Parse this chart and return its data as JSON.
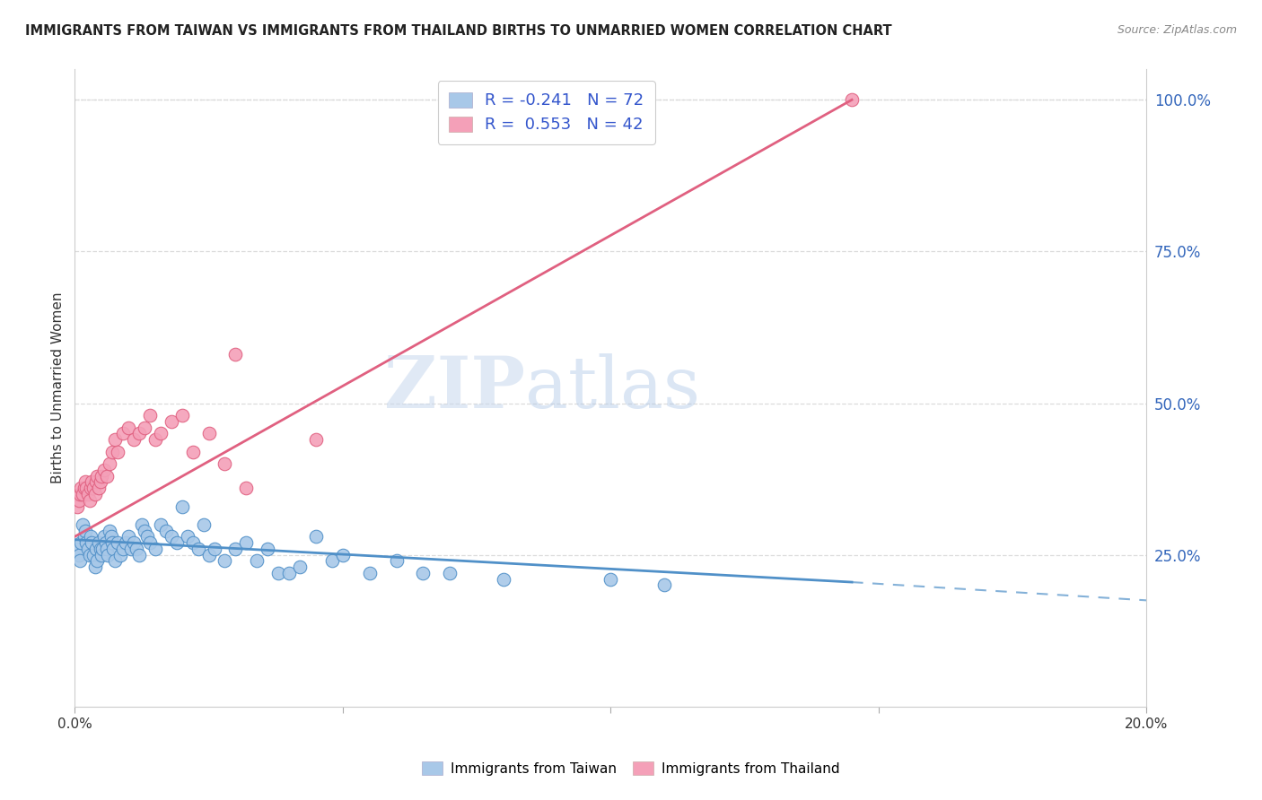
{
  "title": "IMMIGRANTS FROM TAIWAN VS IMMIGRANTS FROM THAILAND BIRTHS TO UNMARRIED WOMEN CORRELATION CHART",
  "source": "Source: ZipAtlas.com",
  "ylabel": "Births to Unmarried Women",
  "xmin": 0.0,
  "xmax": 20.0,
  "ymin": 0.0,
  "ymax": 105.0,
  "yticks_right": [
    25.0,
    50.0,
    75.0,
    100.0
  ],
  "ytick_labels_right": [
    "25.0%",
    "50.0%",
    "75.0%",
    "100.0%"
  ],
  "taiwan_color": "#a8c8e8",
  "thailand_color": "#f4a0b8",
  "taiwan_line_color": "#5090c8",
  "thailand_line_color": "#e06080",
  "taiwan_R": -0.241,
  "taiwan_N": 72,
  "thailand_R": 0.553,
  "thailand_N": 42,
  "taiwan_scatter_x": [
    0.05,
    0.08,
    0.1,
    0.12,
    0.15,
    0.18,
    0.2,
    0.22,
    0.25,
    0.28,
    0.3,
    0.32,
    0.35,
    0.38,
    0.4,
    0.42,
    0.45,
    0.48,
    0.5,
    0.52,
    0.55,
    0.58,
    0.6,
    0.62,
    0.65,
    0.68,
    0.7,
    0.72,
    0.75,
    0.8,
    0.85,
    0.9,
    0.95,
    1.0,
    1.05,
    1.1,
    1.15,
    1.2,
    1.25,
    1.3,
    1.35,
    1.4,
    1.5,
    1.6,
    1.7,
    1.8,
    1.9,
    2.0,
    2.1,
    2.2,
    2.3,
    2.4,
    2.5,
    2.6,
    2.8,
    3.0,
    3.2,
    3.4,
    3.6,
    3.8,
    4.0,
    4.2,
    4.5,
    4.8,
    5.0,
    5.5,
    6.0,
    6.5,
    7.0,
    8.0,
    10.0,
    11.0
  ],
  "taiwan_scatter_y": [
    26,
    25,
    24,
    27,
    30,
    28,
    29,
    27,
    26,
    25,
    28,
    27,
    25,
    23,
    26,
    24,
    27,
    26,
    25,
    26,
    28,
    27,
    26,
    25,
    29,
    28,
    27,
    26,
    24,
    27,
    25,
    26,
    27,
    28,
    26,
    27,
    26,
    25,
    30,
    29,
    28,
    27,
    26,
    30,
    29,
    28,
    27,
    33,
    28,
    27,
    26,
    30,
    25,
    26,
    24,
    26,
    27,
    24,
    26,
    22,
    22,
    23,
    28,
    24,
    25,
    22,
    24,
    22,
    22,
    21,
    21,
    20
  ],
  "thailand_scatter_x": [
    0.05,
    0.08,
    0.1,
    0.12,
    0.15,
    0.18,
    0.2,
    0.22,
    0.25,
    0.28,
    0.3,
    0.32,
    0.35,
    0.38,
    0.4,
    0.42,
    0.45,
    0.48,
    0.5,
    0.55,
    0.6,
    0.65,
    0.7,
    0.75,
    0.8,
    0.9,
    1.0,
    1.1,
    1.2,
    1.3,
    1.4,
    1.5,
    1.6,
    1.8,
    2.0,
    2.2,
    2.5,
    2.8,
    3.0,
    3.2,
    4.5,
    14.5
  ],
  "thailand_scatter_y": [
    33,
    34,
    35,
    36,
    35,
    36,
    37,
    36,
    35,
    34,
    36,
    37,
    36,
    35,
    37,
    38,
    36,
    37,
    38,
    39,
    38,
    40,
    42,
    44,
    42,
    45,
    46,
    44,
    45,
    46,
    48,
    44,
    45,
    47,
    48,
    42,
    45,
    40,
    58,
    36,
    44,
    100
  ],
  "taiwan_line_x0": 0.0,
  "taiwan_line_y0": 27.5,
  "taiwan_line_x1": 14.5,
  "taiwan_line_y1": 20.5,
  "taiwan_line_dash_x1": 20.0,
  "taiwan_line_dash_y1": 17.5,
  "thailand_line_x0": 0.0,
  "thailand_line_y0": 28.0,
  "thailand_line_x1": 14.5,
  "thailand_line_y1": 100.0,
  "watermark_zip": "ZIP",
  "watermark_atlas": "atlas",
  "background_color": "#ffffff",
  "grid_color": "#d8d8d8",
  "top_dotted_y": 100.0
}
